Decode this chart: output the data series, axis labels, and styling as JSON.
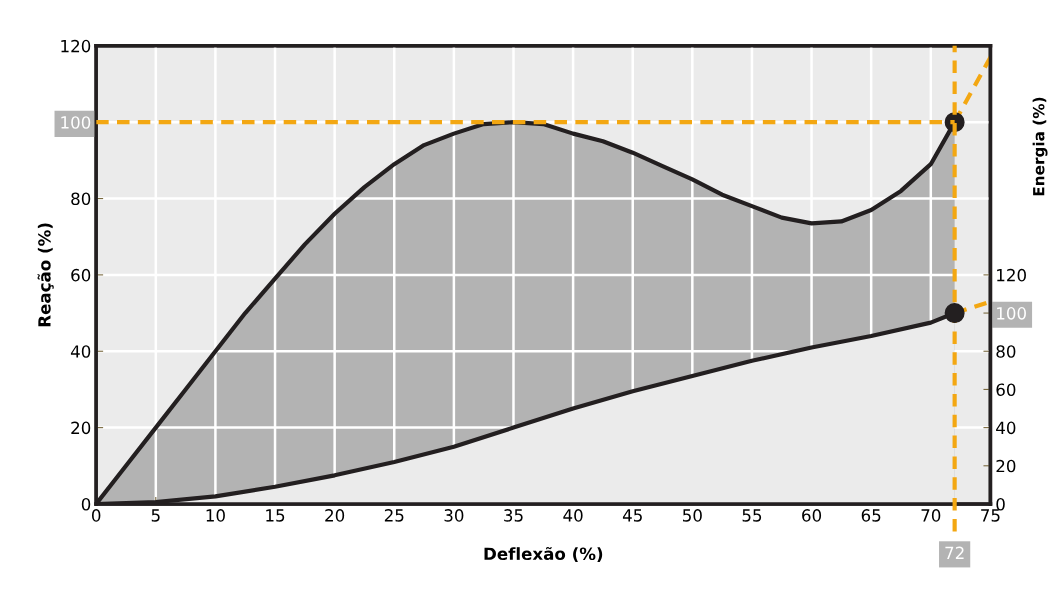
{
  "chart_data": {
    "type": "area",
    "xlabel": "Deflexão (%)",
    "ylabel": "Reação (%)",
    "y2label": "Energia (%)",
    "xlim": [
      0,
      75
    ],
    "xticks": [
      0,
      5,
      10,
      15,
      20,
      25,
      30,
      35,
      40,
      45,
      50,
      55,
      60,
      65,
      70,
      75
    ],
    "ylim": [
      0,
      120
    ],
    "yticks": [
      0,
      20,
      40,
      60,
      80,
      100,
      120
    ],
    "y2lim": [
      0,
      240
    ],
    "y2ticks": [
      0,
      20,
      40,
      60,
      80,
      100,
      120
    ],
    "grid": true,
    "series": [
      {
        "color": "#231f20",
        "x": [
          0,
          2.5,
          5,
          7.5,
          10,
          12.5,
          15,
          17.5,
          20,
          22.5,
          25,
          27.5,
          30,
          32.5,
          35,
          37.5,
          40,
          42.5,
          45,
          47.5,
          50,
          52.5,
          55,
          57.5,
          60,
          62.5,
          65,
          67.5,
          70,
          72
        ],
        "values": [
          0,
          10,
          20,
          30,
          40,
          50,
          59,
          68,
          76,
          83,
          89,
          94,
          97,
          99.5,
          100,
          99.5,
          97,
          95,
          92,
          88.5,
          85,
          81,
          78,
          75,
          73.5,
          74,
          77,
          82,
          89,
          100
        ]
      },
      {
        "axis": "y2",
        "color": "#231f20",
        "x": [
          0,
          5,
          10,
          15,
          20,
          25,
          30,
          35,
          40,
          45,
          50,
          55,
          60,
          65,
          70,
          72
        ],
        "values": [
          0,
          1,
          4,
          9,
          15,
          22,
          30,
          40,
          50,
          59,
          67,
          75,
          82,
          88,
          95,
          100
        ]
      },
      {
        "type": "line",
        "color": "#f3a712",
        "line_style": "dashed",
        "x": [
          72,
          75
        ],
        "values": [
          100,
          117
        ]
      },
      {
        "type": "line",
        "axis": "y2",
        "color": "#f3a712",
        "line_style": "dashed",
        "x": [
          72,
          75
        ],
        "values": [
          100,
          106
        ]
      },
      {
        "type": "scatter",
        "color": "#231f20",
        "marker": "circle",
        "x": [
          72
        ],
        "values": [
          100
        ]
      },
      {
        "type": "scatter",
        "axis": "y2",
        "color": "#231f20",
        "marker": "circle",
        "x": [
          72
        ],
        "values": [
          100
        ]
      }
    ],
    "ref_lines": [
      {
        "axis": "y",
        "value": 100,
        "color": "#f3a712",
        "line_style": "dashed"
      },
      {
        "axis": "x",
        "value": 72,
        "label": "72",
        "color": "#f3a712",
        "line_style": "dashed"
      }
    ]
  }
}
